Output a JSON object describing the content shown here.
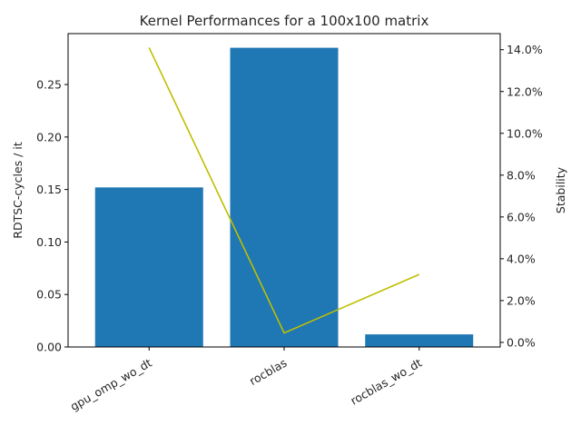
{
  "chart_data": {
    "type": "bar",
    "title": "Kernel Performances for a 100x100 matrix",
    "categories": [
      "gpu_omp_wo_dt",
      "rocblas",
      "rocblas_wo_dt"
    ],
    "series": [
      {
        "values": [
          0.152,
          0.285,
          0.012
        ],
        "axis": "left",
        "mark": "bar",
        "color": "#1f77b4"
      },
      {
        "values": [
          14.1,
          0.45,
          3.25
        ],
        "axis": "right",
        "mark": "line",
        "color": "#bfbf00"
      }
    ],
    "ylabel": "RDTSC-cycles / it",
    "ylim": [
      0,
      0.2985
    ],
    "yticks": [
      0.0,
      0.05,
      0.1,
      0.15,
      0.2,
      0.25
    ],
    "yticklabels": [
      "0.00",
      "0.05",
      "0.10",
      "0.15",
      "0.20",
      "0.25"
    ],
    "y2label": "Stability",
    "y2lim": [
      -0.22,
      14.77
    ],
    "y2ticks": [
      0,
      2,
      4,
      6,
      8,
      10,
      12,
      14
    ],
    "y2ticklabels": [
      "0.0%",
      "2.0%",
      "4.0%",
      "6.0%",
      "8.0%",
      "10.0%",
      "12.0%",
      "14.0%"
    ],
    "grid": false,
    "legend": "none"
  }
}
